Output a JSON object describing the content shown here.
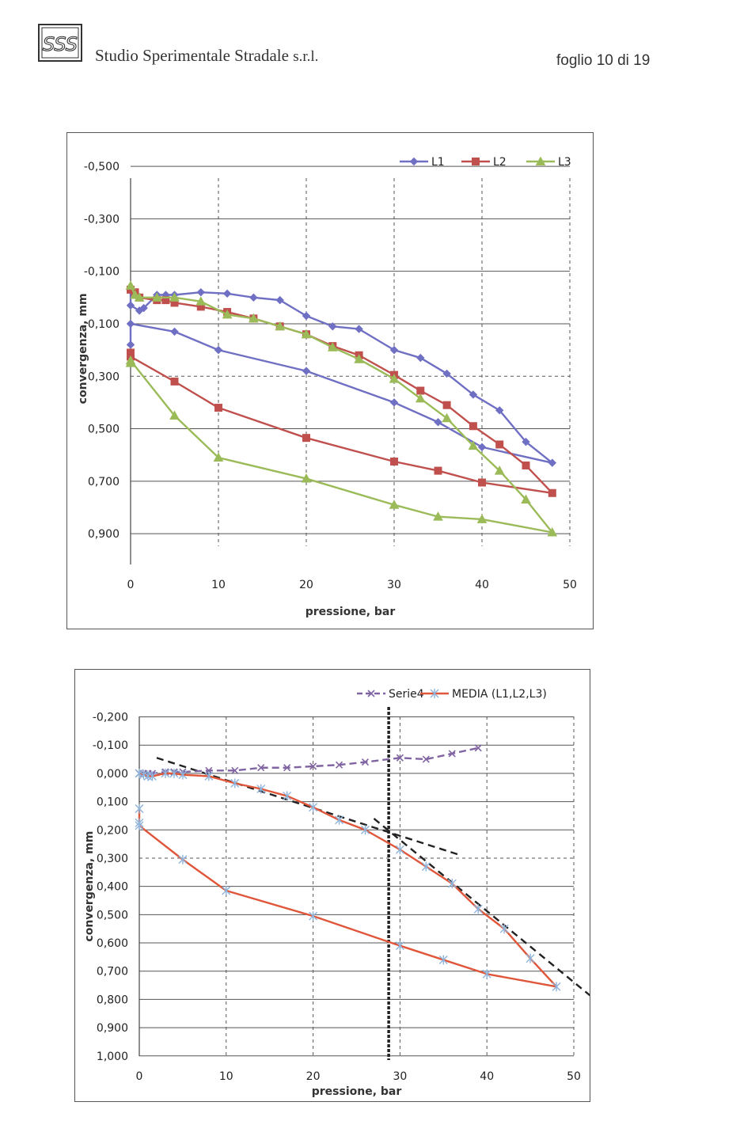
{
  "header": {
    "company": "Studio Sperimentale Stradale",
    "company_suffix": "s.r.l.",
    "sheet": "foglio 10 di 19",
    "logo_letters": "SSS"
  },
  "colors": {
    "L1": "#6f6fc4",
    "L2": "#c0504d",
    "L3": "#9bbb59",
    "Serie4": "#8064a2",
    "MEDIA": "#e0563a",
    "MEDIA_marker": "#8fb4dc"
  },
  "chart_data": [
    {
      "type": "line",
      "title": "",
      "xlabel": "pressione, bar",
      "ylabel": "convergenza, mm",
      "xlim": [
        0,
        50
      ],
      "ylim": [
        -0.55,
        1.0
      ],
      "y_inverted": true,
      "x_ticks": [
        "0",
        "10",
        "20",
        "30",
        "40",
        "50"
      ],
      "y_ticks": [
        {
          "value": -0.5,
          "label": "-0,500"
        },
        {
          "value": -0.3,
          "label": "-0,300"
        },
        {
          "value": -0.1,
          "label": "-0,100"
        },
        {
          "value": 0.1,
          "label": "0,100"
        },
        {
          "value": 0.3,
          "label": "0,300"
        },
        {
          "value": 0.5,
          "label": "0,500"
        },
        {
          "value": 0.7,
          "label": "0,700"
        },
        {
          "value": 0.9,
          "label": "0,900"
        }
      ],
      "legend": "top-right",
      "grid": true,
      "series": [
        {
          "name": "L1",
          "marker": "diamond",
          "x": [
            0,
            0,
            0,
            1,
            1.5,
            3,
            4,
            5,
            8,
            11,
            14,
            17,
            20,
            23,
            26,
            30,
            33,
            36,
            39,
            42,
            45,
            48,
            40,
            35,
            30,
            20,
            10,
            5,
            0,
            0
          ],
          "y": [
            -0.04,
            -0.03,
            0.03,
            0.05,
            0.04,
            -0.01,
            -0.01,
            -0.01,
            -0.02,
            -0.015,
            0.0,
            0.01,
            0.07,
            0.11,
            0.12,
            0.2,
            0.23,
            0.29,
            0.37,
            0.43,
            0.55,
            0.63,
            0.57,
            0.475,
            0.4,
            0.28,
            0.2,
            0.13,
            0.1,
            0.18
          ]
        },
        {
          "name": "L2",
          "marker": "square",
          "x": [
            0,
            0.5,
            1,
            3,
            4,
            5,
            8,
            11,
            14,
            17,
            20,
            23,
            26,
            30,
            33,
            36,
            39,
            42,
            45,
            48,
            40,
            35,
            30,
            20,
            10,
            5,
            0,
            0
          ],
          "y": [
            -0.03,
            -0.02,
            0.0,
            0.01,
            0.01,
            0.02,
            0.035,
            0.055,
            0.08,
            0.11,
            0.14,
            0.185,
            0.22,
            0.295,
            0.355,
            0.41,
            0.49,
            0.56,
            0.64,
            0.745,
            0.705,
            0.66,
            0.625,
            0.535,
            0.42,
            0.32,
            0.225,
            0.21
          ]
        },
        {
          "name": "L3",
          "marker": "triangle",
          "x": [
            0,
            0.5,
            1,
            3,
            5,
            8,
            11,
            14,
            17,
            20,
            23,
            26,
            30,
            33,
            36,
            39,
            42,
            45,
            48,
            40,
            35,
            30,
            20,
            10,
            5,
            0,
            0
          ],
          "y": [
            -0.045,
            -0.01,
            0.0,
            0.0,
            0.0,
            0.015,
            0.065,
            0.08,
            0.11,
            0.14,
            0.19,
            0.235,
            0.31,
            0.385,
            0.46,
            0.565,
            0.66,
            0.77,
            0.895,
            0.845,
            0.835,
            0.79,
            0.69,
            0.61,
            0.45,
            0.24,
            0.25
          ]
        }
      ]
    },
    {
      "type": "line",
      "title": "",
      "xlabel": "pressione, bar",
      "ylabel": "convergenza, mm",
      "xlim": [
        0,
        50
      ],
      "ylim": [
        -0.2,
        1.0
      ],
      "y_inverted": true,
      "x_ticks": [
        "0",
        "10",
        "20",
        "30",
        "40",
        "50"
      ],
      "y_ticks": [
        {
          "value": -0.2,
          "label": "-0,200"
        },
        {
          "value": -0.1,
          "label": "-0,100"
        },
        {
          "value": 0.0,
          "label": "0,000"
        },
        {
          "value": 0.1,
          "label": "0,100"
        },
        {
          "value": 0.2,
          "label": "0,200"
        },
        {
          "value": 0.3,
          "label": "0,300"
        },
        {
          "value": 0.4,
          "label": "0,400"
        },
        {
          "value": 0.5,
          "label": "0,500"
        },
        {
          "value": 0.6,
          "label": "0,600"
        },
        {
          "value": 0.7,
          "label": "0,700"
        },
        {
          "value": 0.8,
          "label": "0,800"
        },
        {
          "value": 0.9,
          "label": "0,900"
        },
        {
          "value": 1.0,
          "label": "1,000"
        }
      ],
      "legend": "top-right",
      "grid": true,
      "series": [
        {
          "name": "Serie4",
          "style": "dashed",
          "marker": "x",
          "x": [
            0,
            0.5,
            1,
            1.5,
            3,
            4,
            5,
            8,
            11,
            14,
            17,
            20,
            23,
            26,
            30,
            33,
            36,
            39
          ],
          "y": [
            0.0,
            0.0,
            0.0,
            0.0,
            -0.005,
            -0.005,
            -0.005,
            -0.01,
            -0.01,
            -0.02,
            -0.02,
            -0.025,
            -0.03,
            -0.04,
            -0.055,
            -0.05,
            -0.07,
            -0.09
          ]
        },
        {
          "name": "MEDIA (L1,L2,L3)",
          "style": "solid",
          "marker": "asterisk",
          "x": [
            0,
            0.5,
            1,
            1.5,
            3,
            4,
            5,
            8,
            11,
            14,
            17,
            20,
            23,
            26,
            30,
            33,
            36,
            39,
            42,
            45,
            48,
            40,
            35,
            30,
            20,
            10,
            5,
            0,
            0,
            0
          ],
          "y": [
            0.0,
            0.005,
            0.01,
            0.01,
            0.0,
            0.0,
            0.005,
            0.01,
            0.035,
            0.055,
            0.08,
            0.12,
            0.165,
            0.2,
            0.27,
            0.33,
            0.39,
            0.48,
            0.55,
            0.655,
            0.755,
            0.71,
            0.66,
            0.61,
            0.505,
            0.415,
            0.305,
            0.185,
            0.175,
            0.125
          ]
        }
      ],
      "annotations": [
        {
          "type": "dashed-line",
          "from": [
            2,
            -0.055
          ],
          "to": [
            37,
            0.29
          ]
        },
        {
          "type": "dashed-line",
          "from": [
            27,
            0.16
          ],
          "to": [
            56,
            0.89
          ]
        },
        {
          "type": "vertical-dashed-line",
          "x": 28.7
        }
      ]
    }
  ]
}
